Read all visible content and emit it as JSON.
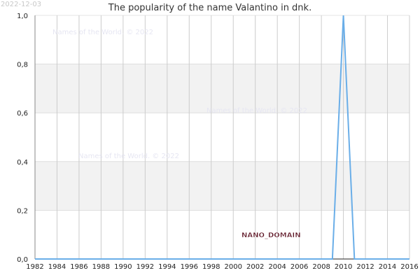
{
  "date_stamp": "2022-12-03",
  "watermarks": [
    "Names of the World. © 2022",
    "Names of the World. © 2022",
    "Names of the World. © 2022"
  ],
  "nano_label": "NANO_DOMAIN",
  "colors": {
    "line": "#6aaee8",
    "band": "#f2f2f2",
    "grid": "#cccccc"
  },
  "chart_data": {
    "type": "line",
    "title": "The popularity of the name Valantino in dnk.",
    "xlabel": "",
    "ylabel": "",
    "xlim": [
      1982,
      2016
    ],
    "ylim": [
      0,
      1
    ],
    "x_ticks": [
      1982,
      1984,
      1986,
      1988,
      1990,
      1992,
      1994,
      1996,
      1998,
      2000,
      2002,
      2004,
      2006,
      2008,
      2010,
      2012,
      2014,
      2016
    ],
    "y_ticks": [
      0.0,
      0.2,
      0.4,
      0.6,
      0.8,
      1.0
    ],
    "y_tick_labels": [
      "0,0",
      "0,2",
      "0,4",
      "0,6",
      "0,8",
      "1,0"
    ],
    "grid": true,
    "series": [
      {
        "x": [
          1982,
          1983,
          1984,
          1985,
          1986,
          1987,
          1988,
          1989,
          1990,
          1991,
          1992,
          1993,
          1994,
          1995,
          1996,
          1997,
          1998,
          1999,
          2000,
          2001,
          2002,
          2003,
          2004,
          2005,
          2006,
          2007,
          2008,
          2009,
          2010,
          2011,
          2012,
          2013,
          2014,
          2015,
          2016
        ],
        "values": [
          0,
          0,
          0,
          0,
          0,
          0,
          0,
          0,
          0,
          0,
          0,
          0,
          0,
          0,
          0,
          0,
          0,
          0,
          0,
          0,
          0,
          0,
          0,
          0,
          0,
          0,
          0,
          0,
          1,
          0,
          0,
          0,
          0,
          0,
          0
        ]
      }
    ]
  }
}
